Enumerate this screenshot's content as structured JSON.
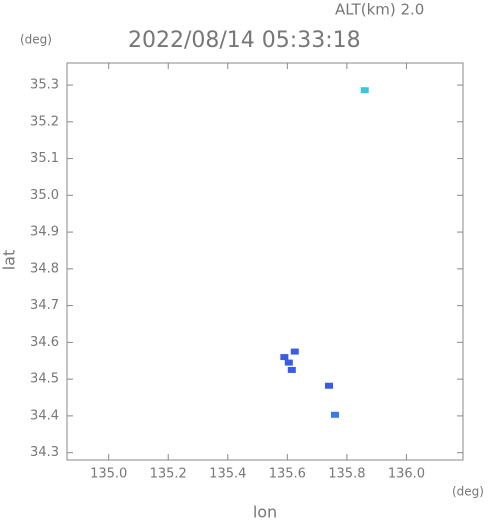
{
  "chart_data": {
    "type": "scatter",
    "title": "2022/08/14 05:33:18",
    "subtitle": "ALT(km) 2.0",
    "x_unit": "(deg)",
    "y_unit": "(deg)",
    "x_label": "lon",
    "y_label": "lat",
    "x": [
      135.86,
      135.625,
      135.59,
      135.605,
      135.615,
      135.74,
      135.76
    ],
    "values": [
      35.286,
      34.575,
      34.56,
      34.545,
      34.525,
      34.482,
      34.403
    ],
    "colors": [
      "#3cc4dc",
      "#3a5ae8",
      "#3a5ae8",
      "#3a5ae8",
      "#3a5ae8",
      "#3a5ae8",
      "#3a7ae8"
    ],
    "xlim": [
      134.86,
      136.19
    ],
    "ylim": [
      34.28,
      35.36
    ],
    "xticks": [
      {
        "value": 135,
        "label": "135.0"
      },
      135.2,
      135.4,
      135.6,
      135.8,
      {
        "value": 136,
        "label": "136.0"
      }
    ],
    "yticks": [
      34.3,
      34.4,
      34.5,
      34.6,
      34.7,
      34.8,
      34.9,
      {
        "value": 35,
        "label": "35.0"
      },
      35.1,
      35.2,
      35.3
    ]
  }
}
